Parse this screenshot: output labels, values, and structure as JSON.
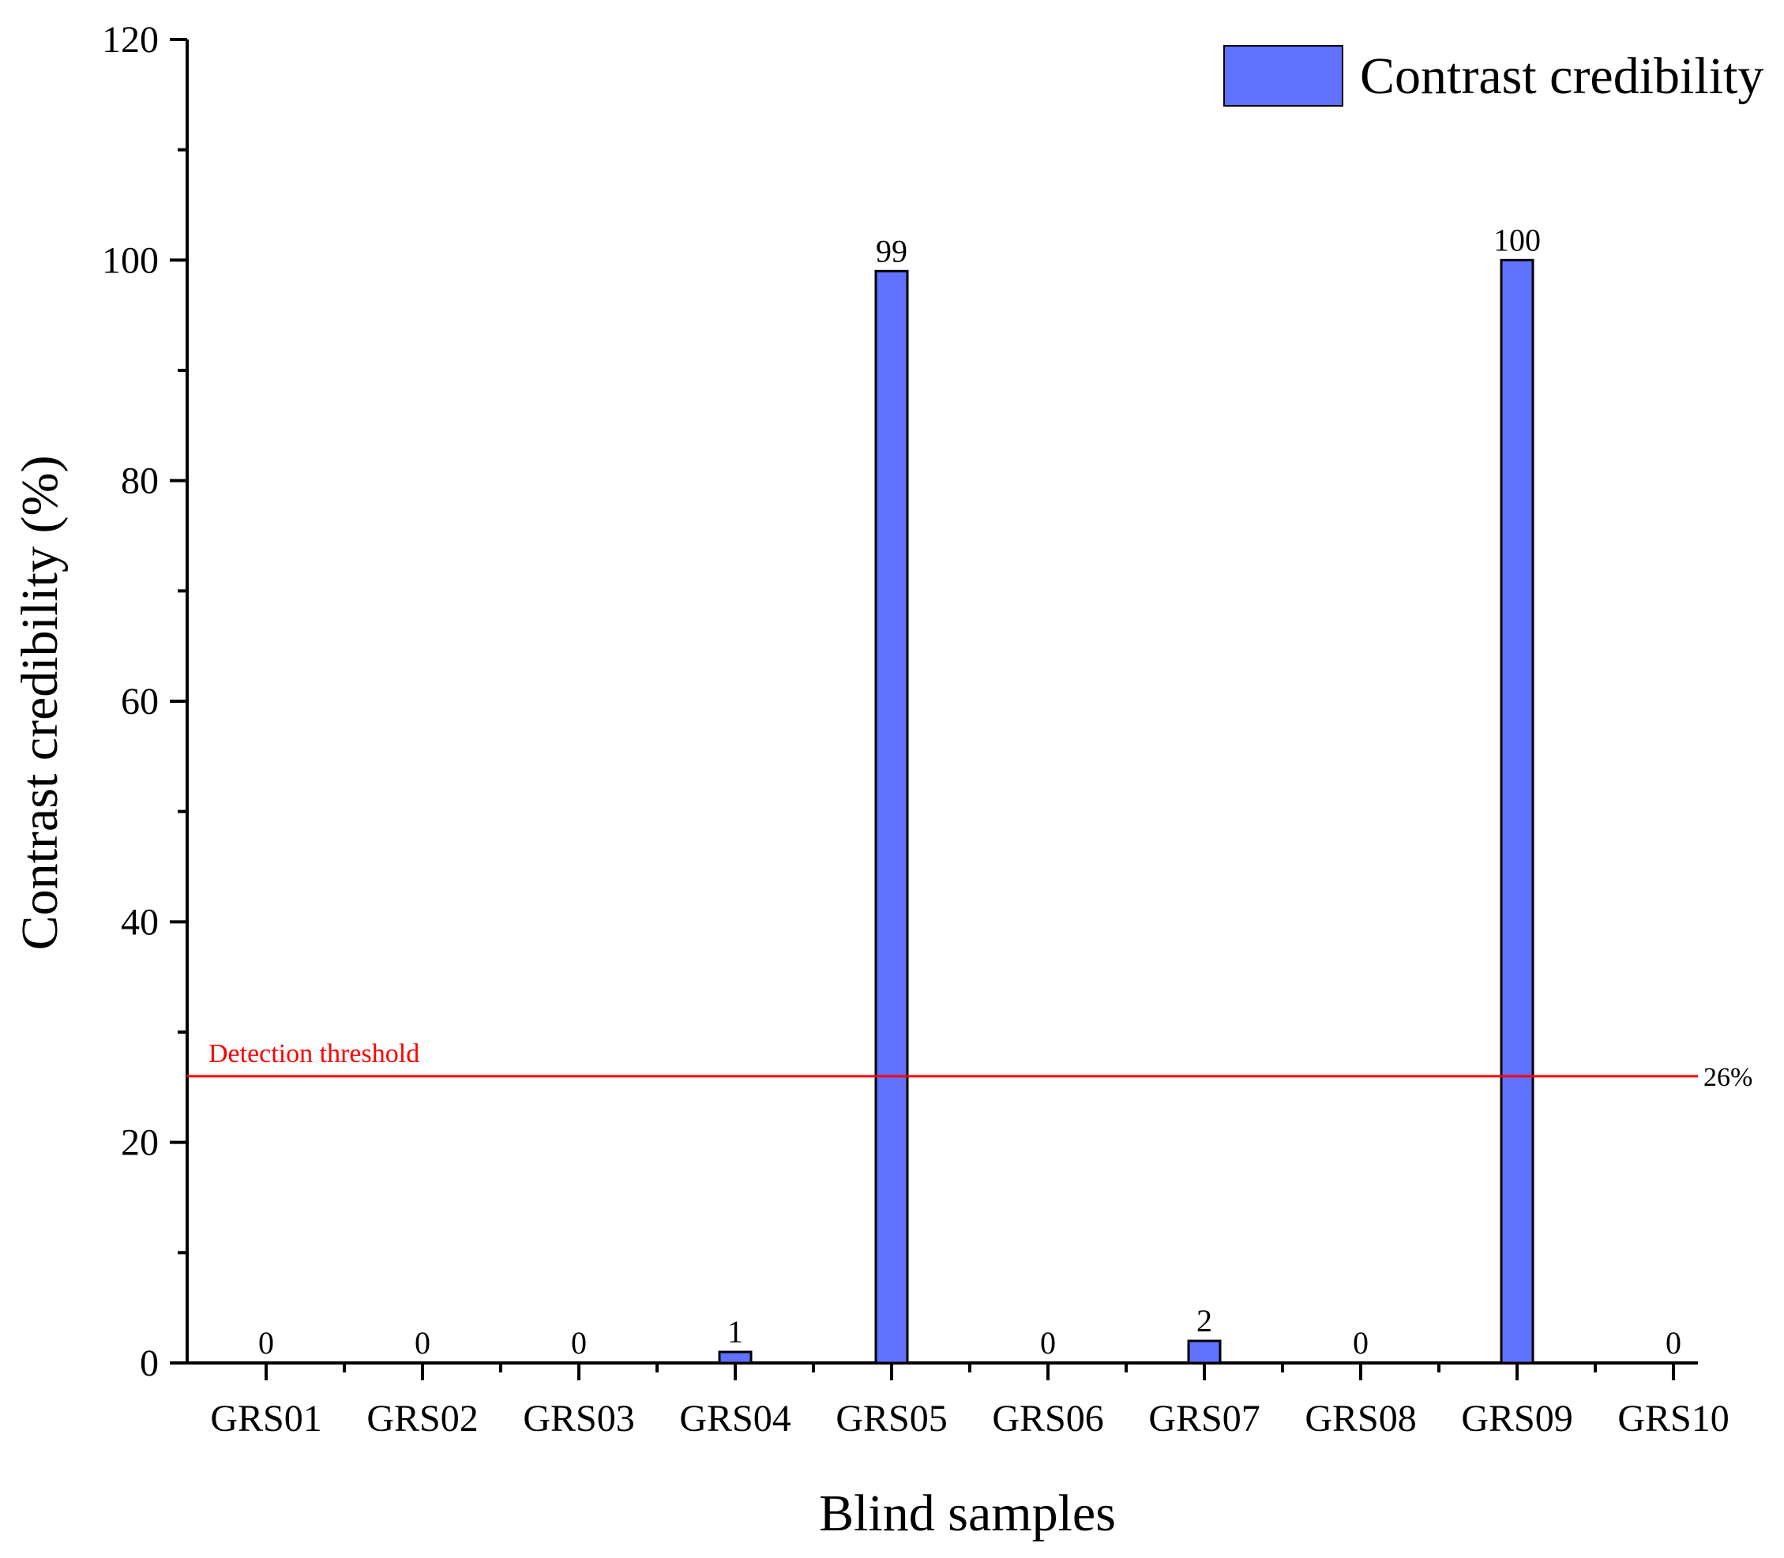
{
  "chart_data": {
    "type": "bar",
    "xlabel": "Blind samples",
    "ylabel": "Contrast credibility (%)",
    "ylim": [
      0,
      120
    ],
    "yticks": [
      "0",
      "20",
      "40",
      "60",
      "80",
      "100",
      "120"
    ],
    "categories": [
      "GRS01",
      "GRS02",
      "GRS03",
      "GRS04",
      "GRS05",
      "GRS06",
      "GRS07",
      "GRS08",
      "GRS09",
      "GRS10"
    ],
    "series": [
      {
        "name": "Contrast credibility",
        "values": [
          0,
          0,
          0,
          1,
          99,
          0,
          2,
          0,
          100,
          0
        ],
        "labels": [
          "0",
          "0",
          "0",
          "1",
          "99",
          "0",
          "2",
          "0",
          "100",
          "0"
        ],
        "color": "#6070ff"
      }
    ],
    "threshold": {
      "value": 26,
      "label": "Detection threshold",
      "value_label": "26%",
      "color": "#ff0000"
    },
    "legend": {
      "position": "top-right"
    },
    "grid": false
  }
}
